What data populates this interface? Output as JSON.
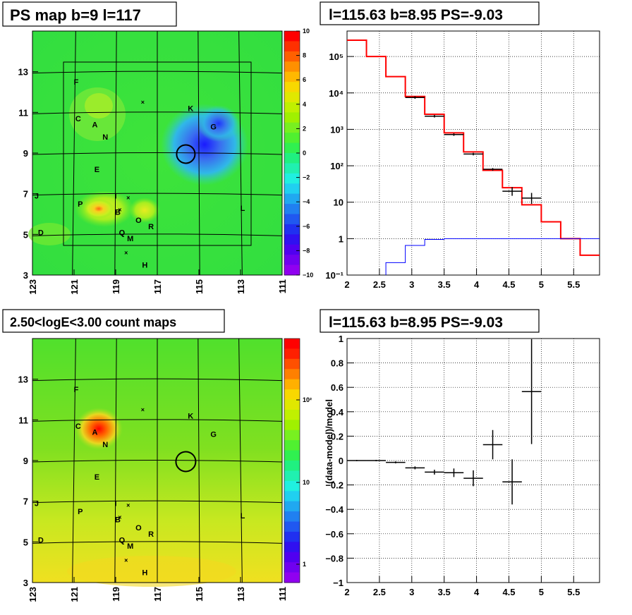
{
  "chart_data": [
    {
      "type": "heatmap",
      "title": "PS map b=9 l=117",
      "x_ticks": [
        "123",
        "121",
        "119",
        "117",
        "115",
        "113",
        "111"
      ],
      "y_ticks": [
        "3",
        "5",
        "7",
        "9",
        "11",
        "13"
      ],
      "xlim": [
        123,
        111
      ],
      "ylim": [
        3,
        15
      ],
      "colorbar_ticks": [
        "10",
        "8",
        "6",
        "4",
        "2",
        "0",
        "−2",
        "−4",
        "−6",
        "−8",
        "−10"
      ],
      "colorbar_range": [
        -10,
        10
      ],
      "grid": true,
      "circle": {
        "l": 115.63,
        "b": 8.95
      },
      "sources": [
        {
          "name": "F",
          "l": 120.9,
          "b": 12.5
        },
        {
          "name": "C",
          "l": 120.8,
          "b": 10.7
        },
        {
          "name": "A",
          "l": 120.0,
          "b": 10.4
        },
        {
          "name": "N",
          "l": 119.5,
          "b": 9.8
        },
        {
          "name": "K",
          "l": 115.4,
          "b": 11.2
        },
        {
          "name": "G",
          "l": 114.3,
          "b": 10.3
        },
        {
          "name": "E",
          "l": 119.9,
          "b": 8.2
        },
        {
          "name": "J",
          "l": 122.8,
          "b": 6.9
        },
        {
          "name": "I",
          "l": 119.0,
          "b": 6.9
        },
        {
          "name": "P",
          "l": 120.7,
          "b": 6.5
        },
        {
          "name": "B",
          "l": 118.9,
          "b": 6.1
        },
        {
          "name": "L",
          "l": 112.9,
          "b": 6.3
        },
        {
          "name": "O",
          "l": 117.9,
          "b": 5.7
        },
        {
          "name": "R",
          "l": 117.3,
          "b": 5.4
        },
        {
          "name": "D",
          "l": 122.6,
          "b": 5.1
        },
        {
          "name": "Q",
          "l": 118.7,
          "b": 5.1
        },
        {
          "name": "M",
          "l": 118.3,
          "b": 4.8
        },
        {
          "name": "H",
          "l": 117.6,
          "b": 3.5
        }
      ],
      "crosses": [
        {
          "l": 117.7,
          "b": 11.5
        },
        {
          "l": 118.4,
          "b": 6.8
        },
        {
          "l": 118.8,
          "b": 6.2
        },
        {
          "l": 118.5,
          "b": 4.1
        }
      ]
    },
    {
      "type": "line",
      "title": "l=115.63 b=8.95 PS=-9.03",
      "x_ticks": [
        "2",
        "2.5",
        "3",
        "3.5",
        "4",
        "4.5",
        "5",
        "5.5"
      ],
      "y_ticks": [
        "10⁻¹",
        "1",
        "10",
        "10²",
        "10³",
        "10⁴",
        "10⁵"
      ],
      "xlim": [
        2,
        5.9
      ],
      "ylim": [
        0.1,
        500000
      ],
      "log_y": true,
      "grid": true,
      "series": [
        {
          "color": "#ff0000",
          "edges": [
            2,
            2.3,
            2.6,
            2.9,
            3.2,
            3.5,
            3.8,
            4.1,
            4.4,
            4.7,
            5.0,
            5.3,
            5.6,
            5.9
          ],
          "values": [
            280000,
            100000,
            28000,
            8000,
            2600,
            800,
            240,
            75,
            25,
            8.5,
            2.9,
            1.0,
            0.35
          ]
        },
        {
          "color": "#0000ff",
          "edges": [
            2,
            2.3,
            2.6,
            2.9,
            3.2,
            3.5,
            3.8,
            4.1,
            4.4,
            4.7,
            5.0,
            5.3,
            5.6,
            5.9
          ],
          "values": [
            0,
            0,
            0.22,
            0.65,
            0.95,
            1,
            1,
            1,
            1,
            1,
            1,
            1,
            1
          ]
        },
        {
          "color": "#000000",
          "points": [
            {
              "x": 3.05,
              "y": 7500,
              "xerr": 0.15
            },
            {
              "x": 3.35,
              "y": 2300,
              "xerr": 0.15
            },
            {
              "x": 3.65,
              "y": 720,
              "xerr": 0.15
            },
            {
              "x": 3.95,
              "y": 210,
              "xerr": 0.15
            },
            {
              "x": 4.25,
              "y": 80,
              "xerr": 0.15
            },
            {
              "x": 4.55,
              "y": 20,
              "xerr": 0.15,
              "yerr": [
                15,
                26
              ]
            },
            {
              "x": 4.85,
              "y": 13,
              "xerr": 0.15,
              "yerr": [
                9,
                18
              ]
            }
          ]
        }
      ]
    },
    {
      "type": "heatmap",
      "title": "2.50<logE<3.00 count maps",
      "x_ticks": [
        "123",
        "121",
        "119",
        "117",
        "115",
        "113",
        "111"
      ],
      "y_ticks": [
        "3",
        "5",
        "7",
        "9",
        "11",
        "13"
      ],
      "xlim": [
        123,
        111
      ],
      "ylim": [
        3,
        15
      ],
      "colorbar_ticks": [
        "10²",
        "10",
        "1"
      ],
      "log_z": true
    },
    {
      "type": "scatter",
      "title": "l=115.63 b=8.95 PS=-9.03",
      "ylabel": "(data-model)/model",
      "x_ticks": [
        "2",
        "2.5",
        "3",
        "3.5",
        "4",
        "4.5",
        "5",
        "5.5"
      ],
      "y_ticks": [
        "−1",
        "−0.8",
        "−0.6",
        "−0.4",
        "−0.2",
        "0",
        "0.2",
        "0.4",
        "0.6",
        "0.8",
        "1"
      ],
      "xlim": [
        2,
        5.9
      ],
      "ylim": [
        -1,
        1
      ],
      "grid": true,
      "points": [
        {
          "x": 2.15,
          "y": 0.0,
          "xerr": 0.15,
          "yerr": 0.005
        },
        {
          "x": 2.45,
          "y": 0.0,
          "xerr": 0.15,
          "yerr": 0.006
        },
        {
          "x": 2.75,
          "y": -0.015,
          "xerr": 0.15,
          "yerr": 0.008
        },
        {
          "x": 3.05,
          "y": -0.06,
          "xerr": 0.15,
          "yerr": 0.012
        },
        {
          "x": 3.35,
          "y": -0.095,
          "xerr": 0.15,
          "yerr": 0.02
        },
        {
          "x": 3.65,
          "y": -0.1,
          "xerr": 0.15,
          "yerr": 0.035
        },
        {
          "x": 3.95,
          "y": -0.145,
          "xerr": 0.15,
          "yerr": 0.065
        },
        {
          "x": 4.25,
          "y": 0.13,
          "xerr": 0.15,
          "yerr": 0.12
        },
        {
          "x": 4.55,
          "y": -0.175,
          "xerr": 0.15,
          "yerr": 0.185
        },
        {
          "x": 4.85,
          "y": 0.565,
          "xerr": 0.15,
          "yerr": 0.43
        }
      ]
    }
  ]
}
